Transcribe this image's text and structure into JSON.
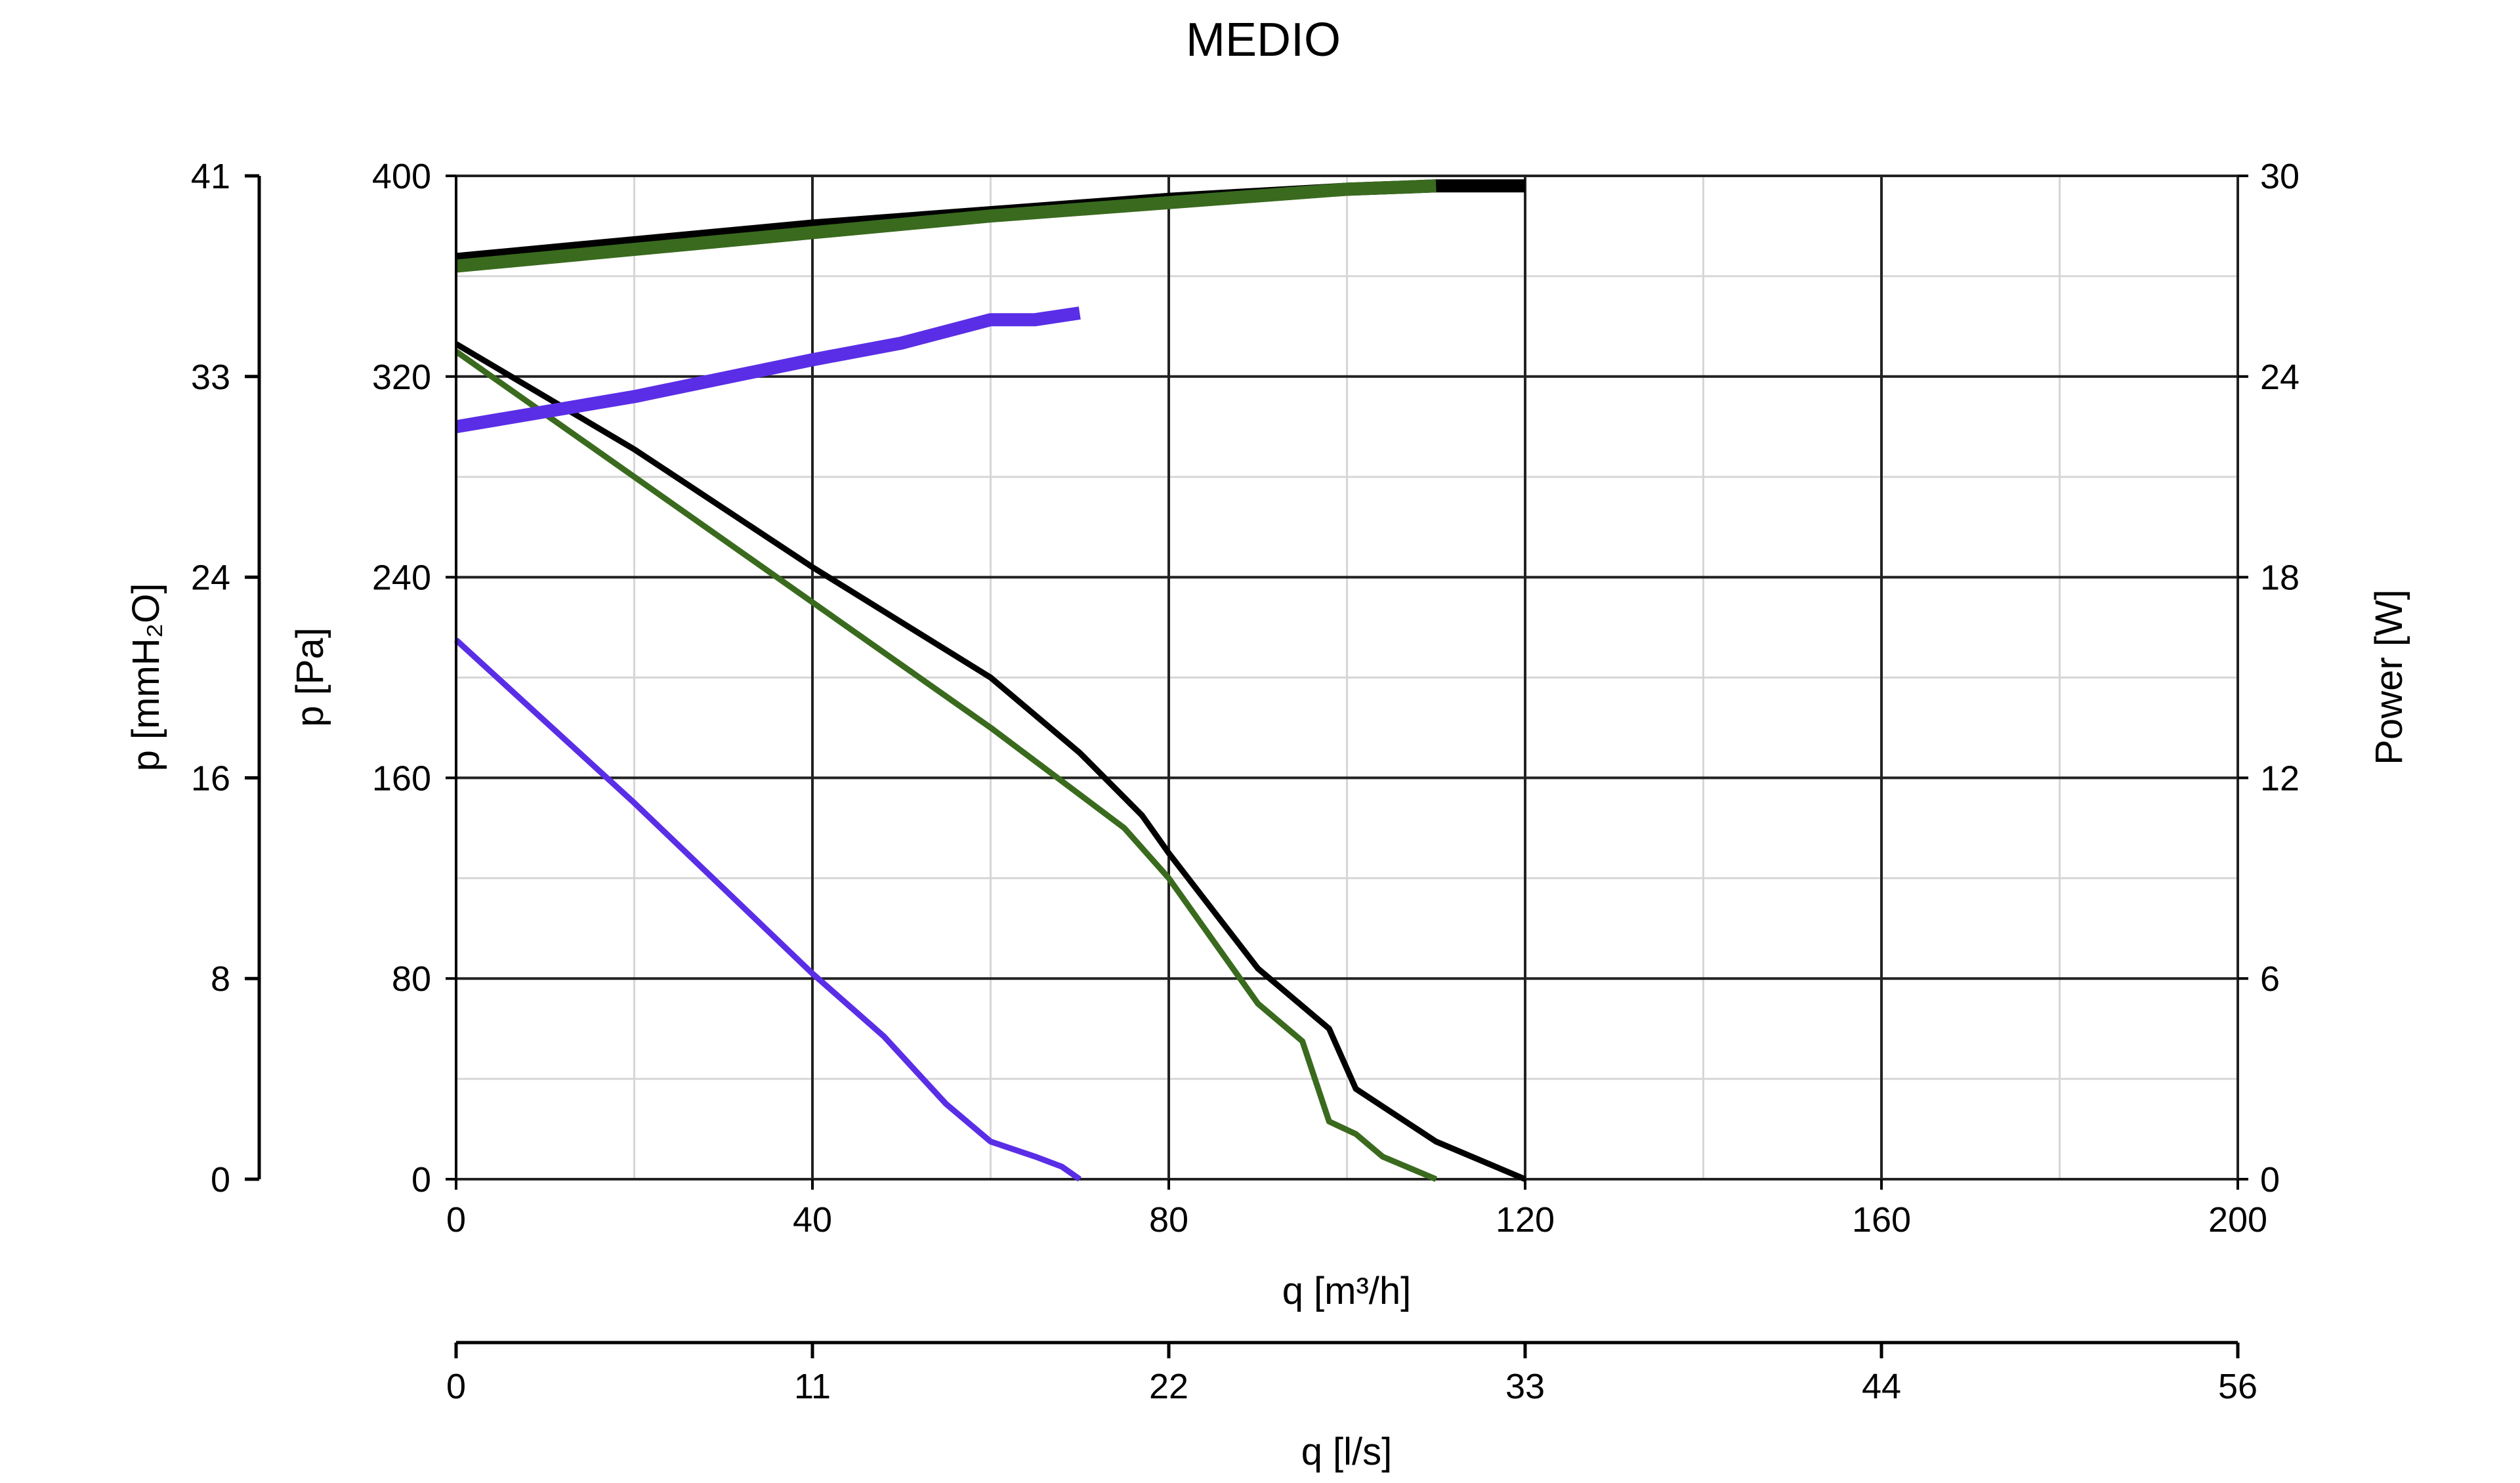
{
  "chart_data": {
    "type": "line",
    "title": "MEDIO",
    "xlabel": "q [m³/h]",
    "x2label": "q [l/s]",
    "ylabel": "p [Pa]",
    "y2label": "p [mmH₂O]",
    "y3label": "Power [W]",
    "xlim": [
      0,
      200
    ],
    "ylim": [
      0,
      400
    ],
    "power_lim": [
      0,
      30
    ],
    "x_ticks": [
      "0",
      "40",
      "80",
      "120",
      "160",
      "200"
    ],
    "x2_ticks": [
      "0",
      "11",
      "22",
      "33",
      "44",
      "56"
    ],
    "y_ticks": [
      "0",
      "80",
      "160",
      "240",
      "320",
      "400"
    ],
    "y2_ticks": [
      "0",
      "8",
      "16",
      "24",
      "33",
      "41"
    ],
    "power_ticks": [
      "0",
      "6",
      "12",
      "18",
      "24",
      "30"
    ],
    "grid": true,
    "colors": {
      "black": "#000000",
      "green": "#3a6a1e",
      "purple": "#5a2ee6",
      "grid_major": "#222222",
      "grid_minor": "#d6d6d6"
    },
    "series": [
      {
        "kind": "pressure",
        "color": "#000000",
        "points": [
          [
            0,
            333
          ],
          [
            20,
            291
          ],
          [
            40,
            244
          ],
          [
            60,
            200
          ],
          [
            70,
            170
          ],
          [
            77,
            145
          ],
          [
            80,
            130
          ],
          [
            90,
            84
          ],
          [
            98,
            60
          ],
          [
            101,
            36
          ],
          [
            110,
            15
          ],
          [
            120,
            0
          ]
        ]
      },
      {
        "kind": "pressure",
        "color": "#3a6a1e",
        "points": [
          [
            0,
            330
          ],
          [
            20,
            280
          ],
          [
            40,
            230
          ],
          [
            60,
            180
          ],
          [
            75,
            140
          ],
          [
            80,
            120
          ],
          [
            90,
            70
          ],
          [
            95,
            55
          ],
          [
            98,
            23
          ],
          [
            101,
            18
          ],
          [
            104,
            9
          ],
          [
            110,
            0
          ]
        ]
      },
      {
        "kind": "pressure",
        "color": "#5a2ee6",
        "points": [
          [
            0,
            215
          ],
          [
            20,
            150
          ],
          [
            40,
            82
          ],
          [
            48,
            57
          ],
          [
            55,
            30
          ],
          [
            60,
            15
          ],
          [
            65,
            9
          ],
          [
            68,
            5
          ],
          [
            70,
            0
          ]
        ]
      },
      {
        "kind": "power",
        "color": "#000000",
        "points": [
          [
            0,
            27.5
          ],
          [
            20,
            28.0
          ],
          [
            40,
            28.5
          ],
          [
            60,
            28.9
          ],
          [
            80,
            29.3
          ],
          [
            100,
            29.6
          ],
          [
            110,
            29.7
          ],
          [
            120,
            29.7
          ]
        ]
      },
      {
        "kind": "power",
        "color": "#3a6a1e",
        "points": [
          [
            0,
            27.3
          ],
          [
            20,
            27.8
          ],
          [
            40,
            28.3
          ],
          [
            60,
            28.8
          ],
          [
            80,
            29.2
          ],
          [
            100,
            29.6
          ],
          [
            110,
            29.7
          ]
        ]
      },
      {
        "kind": "power",
        "color": "#5a2ee6",
        "points": [
          [
            0,
            22.5
          ],
          [
            20,
            23.4
          ],
          [
            40,
            24.5
          ],
          [
            50,
            25.0
          ],
          [
            60,
            25.7
          ],
          [
            65,
            25.7
          ],
          [
            70,
            25.9
          ]
        ]
      }
    ]
  }
}
